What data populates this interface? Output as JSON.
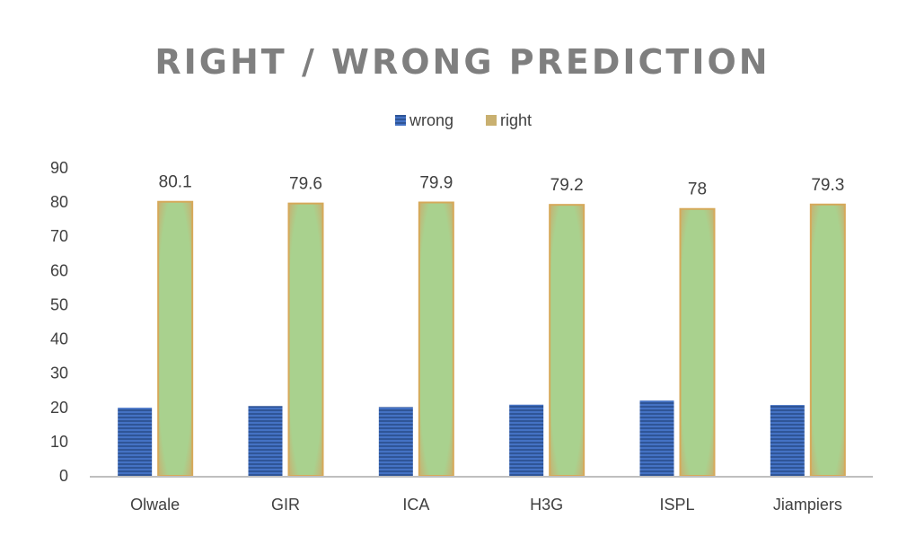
{
  "chart_data": {
    "type": "bar",
    "title": "RIGHT / WRONG PREDICTION",
    "categories": [
      "Olwale",
      "GIR",
      "ICA",
      "H3G",
      "ISPL",
      "Jiampiers"
    ],
    "series": [
      {
        "name": "wrong",
        "values": [
          19.9,
          20.4,
          20.1,
          20.8,
          22.0,
          20.7
        ],
        "color": "#4472C4"
      },
      {
        "name": "right",
        "values": [
          80.1,
          79.6,
          79.9,
          79.2,
          78,
          79.3
        ],
        "color": "#A9D18E"
      }
    ],
    "data_labels": [
      "80.1",
      "79.6",
      "79.9",
      "79.2",
      "78",
      "79.3"
    ],
    "ylim": [
      0,
      90
    ],
    "yticks": [
      0,
      10,
      20,
      30,
      40,
      50,
      60,
      70,
      80,
      90
    ],
    "legend_position": "top-center",
    "gridlines": false,
    "colors": {
      "title": "#7F7F7F",
      "axis_text": "#404040",
      "axis_line": "#BFBFBF",
      "wrong_stripe": "#2F5597",
      "right_border": "#D6A95A"
    }
  }
}
